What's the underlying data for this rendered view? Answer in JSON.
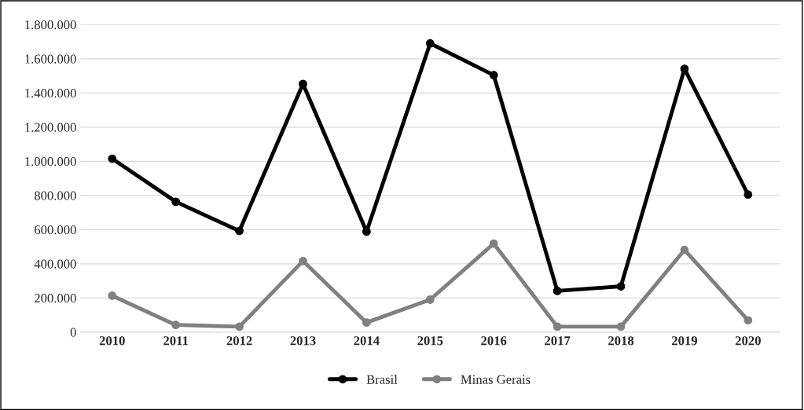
{
  "chart_data": {
    "type": "line",
    "categories": [
      "2010",
      "2011",
      "2012",
      "2013",
      "2014",
      "2015",
      "2016",
      "2017",
      "2018",
      "2019",
      "2020"
    ],
    "series": [
      {
        "name": "Brasil",
        "color": "#000000",
        "values": [
          1015000,
          763000,
          592000,
          1453000,
          588000,
          1690000,
          1504000,
          241000,
          268000,
          1541000,
          805000
        ]
      },
      {
        "name": "Minas Gerais",
        "color": "#808080",
        "values": [
          213000,
          42000,
          32000,
          416000,
          56000,
          190000,
          518000,
          32000,
          32000,
          481000,
          69000
        ]
      }
    ],
    "ylim": [
      0,
      1800000
    ],
    "yticks": [
      0,
      {
        "value": 200000,
        "label": "200.000"
      },
      {
        "value": 400000,
        "label": "400.000"
      },
      {
        "value": 600000,
        "label": "600.000"
      },
      {
        "value": 800000,
        "label": "800.000"
      },
      {
        "value": 1000000,
        "label": "1.000.000"
      },
      {
        "value": 1200000,
        "label": "1.200.000"
      },
      {
        "value": 1400000,
        "label": "1.400.000"
      },
      {
        "value": 1600000,
        "label": "1.600.000"
      },
      {
        "value": 1800000,
        "label": "1.800.000"
      }
    ],
    "grid": "y",
    "legend": "bottom",
    "marker": "circle",
    "line_style": "solid"
  }
}
